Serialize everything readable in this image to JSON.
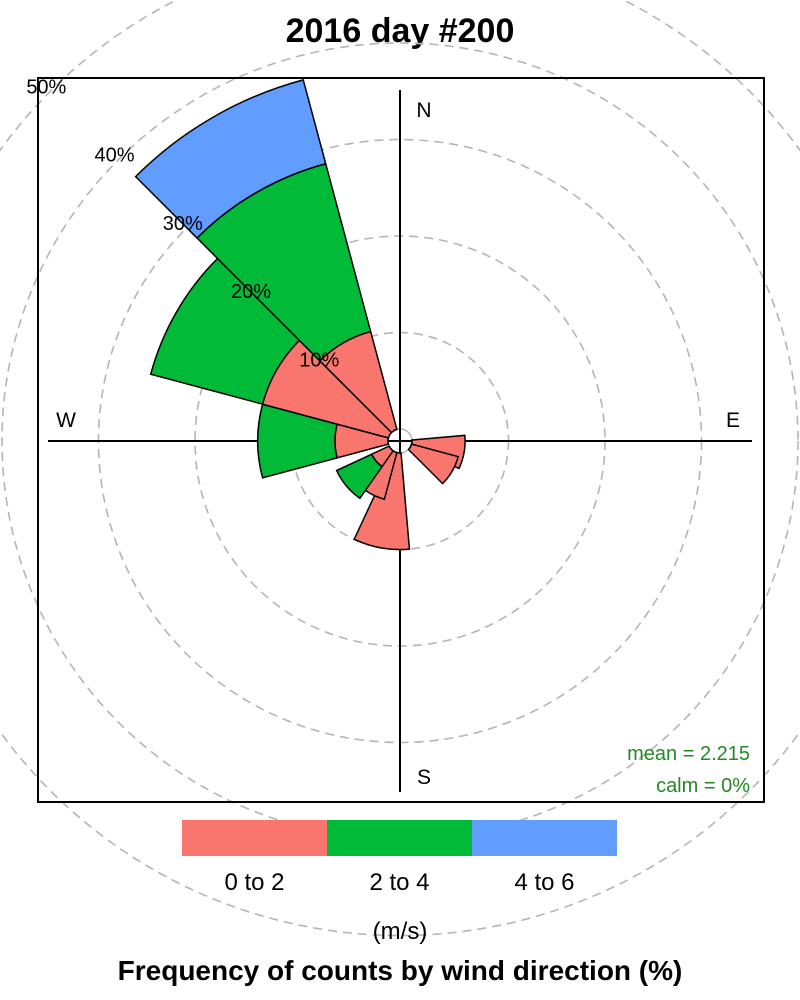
{
  "chart_data": {
    "type": "wind_rose",
    "title": "2016 day #200",
    "footer": "Frequency of counts by wind direction (%)",
    "legend": {
      "unit": "(m/s)",
      "placement": "bottom",
      "bins": [
        {
          "label": "0 to 2",
          "color": "#F8766D"
        },
        {
          "label": "2 to 4",
          "color": "#00BA38"
        },
        {
          "label": "4 to 6",
          "color": "#619CFF"
        }
      ]
    },
    "compass": [
      "N",
      "E",
      "S",
      "W"
    ],
    "grid_labels": [
      "10%",
      "20%",
      "30%",
      "40%",
      "50%"
    ],
    "grid_percent": [
      10,
      20,
      30,
      40,
      50
    ],
    "stats": {
      "mean": "mean = 2.215",
      "calm": "calm = 0%"
    },
    "stats_color": "#228B22",
    "sectors": [
      {
        "direction": 100,
        "cumulative": [
          5.5,
          5.5,
          5.5
        ]
      },
      {
        "direction": 120,
        "cumulative": [
          5.0,
          5.0,
          5.0
        ]
      },
      {
        "direction": 190,
        "cumulative": [
          10.0,
          10.0,
          10.0
        ]
      },
      {
        "direction": 210,
        "cumulative": [
          5.0,
          5.0,
          5.0
        ]
      },
      {
        "direction": 230,
        "cumulative": [
          2.0,
          6.0,
          6.0
        ]
      },
      {
        "direction": 270,
        "cumulative": [
          5.5,
          13.5,
          13.5
        ]
      },
      {
        "direction": 300,
        "cumulative": [
          13.5,
          25.5,
          25.5
        ]
      },
      {
        "direction": 330,
        "cumulative": [
          10.5,
          28.5,
          37.5
        ]
      }
    ]
  }
}
